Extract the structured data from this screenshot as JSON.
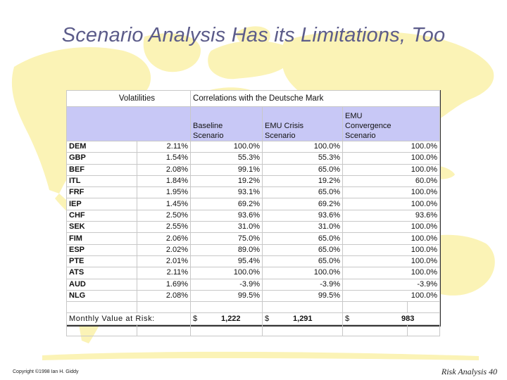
{
  "slide": {
    "title": "Scenario Analysis Has its Limitations, Too",
    "copyright": "Copyright ©1998 Ian H. Giddy",
    "page_label": "Risk Analysis 40",
    "map_color": "#fbf3b6"
  },
  "table": {
    "volatilities_header": "Volatilities",
    "correlations_header": "Correlations with the Deutsche Mark",
    "baseline_header_1": "Baseline",
    "baseline_header_2": "Scenario",
    "emu_crisis_header_1": "EMU Crisis",
    "emu_crisis_header_2": "Scenario",
    "emu_conv_header_1": "EMU",
    "emu_conv_header_2": "Convergence",
    "emu_conv_header_3": "Scenario",
    "header_color": "#c8c8f6",
    "rows": [
      {
        "code": "DEM",
        "vol": "2.11%",
        "base": "100.0%",
        "crisis": "100.0%",
        "conv": "100.0%"
      },
      {
        "code": "GBP",
        "vol": "1.54%",
        "base": "55.3%",
        "crisis": "55.3%",
        "conv": "100.0%"
      },
      {
        "code": "BEF",
        "vol": "2.08%",
        "base": "99.1%",
        "crisis": "65.0%",
        "conv": "100.0%"
      },
      {
        "code": "ITL",
        "vol": "1.84%",
        "base": "19.2%",
        "crisis": "19.2%",
        "conv": "60.0%"
      },
      {
        "code": "FRF",
        "vol": "1.95%",
        "base": "93.1%",
        "crisis": "65.0%",
        "conv": "100.0%"
      },
      {
        "code": "IEP",
        "vol": "1.45%",
        "base": "69.2%",
        "crisis": "69.2%",
        "conv": "100.0%"
      },
      {
        "code": "CHF",
        "vol": "2.50%",
        "base": "93.6%",
        "crisis": "93.6%",
        "conv": "93.6%"
      },
      {
        "code": "SEK",
        "vol": "2.55%",
        "base": "31.0%",
        "crisis": "31.0%",
        "conv": "100.0%"
      },
      {
        "code": "FIM",
        "vol": "2.06%",
        "base": "75.0%",
        "crisis": "65.0%",
        "conv": "100.0%"
      },
      {
        "code": "ESP",
        "vol": "2.02%",
        "base": "89.0%",
        "crisis": "65.0%",
        "conv": "100.0%"
      },
      {
        "code": "PTE",
        "vol": "2.01%",
        "base": "95.4%",
        "crisis": "65.0%",
        "conv": "100.0%"
      },
      {
        "code": "ATS",
        "vol": "2.11%",
        "base": "100.0%",
        "crisis": "100.0%",
        "conv": "100.0%"
      },
      {
        "code": "AUD",
        "vol": "1.69%",
        "base": "-3.9%",
        "crisis": "-3.9%",
        "conv": "-3.9%"
      },
      {
        "code": "NLG",
        "vol": "2.08%",
        "base": "99.5%",
        "crisis": "99.5%",
        "conv": "100.0%"
      }
    ],
    "monthly_var_label": "Monthly Value at Risk:",
    "var_baseline_sym": "$",
    "var_baseline": "1,222",
    "var_crisis_sym": "$",
    "var_crisis": "1,291",
    "var_conv_sym": "$",
    "var_conv": "983"
  }
}
